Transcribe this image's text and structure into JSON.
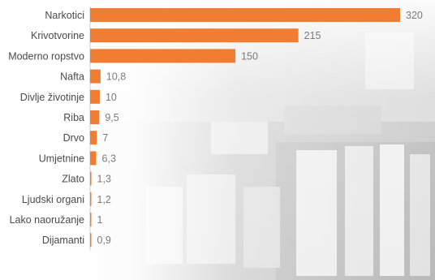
{
  "chart_data": {
    "type": "bar",
    "orientation": "horizontal",
    "categories": [
      "Narkotici",
      "Krivotvorine",
      "Moderno ropstvo",
      "Nafta",
      "Divlje životinje",
      "Riba",
      "Drvo",
      "Umjetnine",
      "Zlato",
      "Ljudski organi",
      "Lako naoružanje",
      "Dijamanti"
    ],
    "values": [
      320,
      215,
      150,
      10.8,
      10,
      9.5,
      7,
      6.3,
      1.3,
      1.2,
      1,
      0.9
    ],
    "value_labels": [
      "320",
      "215",
      "150",
      "10,8",
      "10",
      "9,5",
      "7",
      "6,3",
      "1,3",
      "1,2",
      "1",
      "0,9"
    ],
    "title": "",
    "xlabel": "",
    "ylabel": "",
    "xlim": [
      0,
      320
    ],
    "grid": false,
    "legend": "none",
    "bar_color": "#f07d32"
  }
}
